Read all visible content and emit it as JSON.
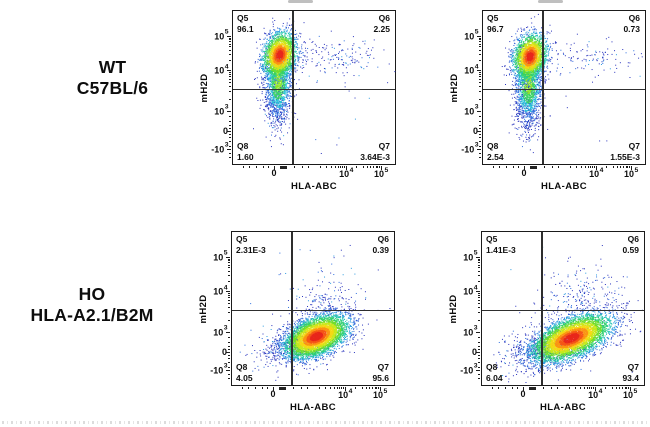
{
  "figure": {
    "background": "#ffffff",
    "text_color": "#0d0d0d"
  },
  "rows": [
    {
      "line1": "WT",
      "line2": "C57BL/6"
    },
    {
      "line1": "HO",
      "line2": "HLA-A2.1/B2M"
    }
  ],
  "axes": {
    "x": {
      "label": "HLA-ABC",
      "scale": "biexponential",
      "ticks": [
        {
          "base": "0",
          "exp": "",
          "pos": 0.25
        },
        {
          "base": "10",
          "exp": "4",
          "pos": 0.689
        },
        {
          "base": "10",
          "exp": "5",
          "pos": 0.902
        }
      ],
      "minor": [
        0.753,
        0.791,
        0.818,
        0.838,
        0.855,
        0.869,
        0.881,
        0.892,
        0.529,
        0.569,
        0.598,
        0.62,
        0.638,
        0.653,
        0.666,
        0.678,
        0.46,
        0.418,
        0.372,
        0.325,
        0.285,
        0.215,
        0.18,
        0.14,
        0.1,
        0.06
      ]
    },
    "y": {
      "label": "mH2D",
      "scale": "biexponential",
      "ticks": [
        {
          "base": "10",
          "exp": "5",
          "pos": 0.839
        },
        {
          "base": "10",
          "exp": "4",
          "pos": 0.619
        },
        {
          "base": "10",
          "exp": "3",
          "pos": 0.355
        },
        {
          "base": "0",
          "exp": "",
          "pos": 0.226
        },
        {
          "base": "-10",
          "exp": "3",
          "pos": 0.11
        }
      ],
      "minor": [
        0.685,
        0.724,
        0.751,
        0.772,
        0.79,
        0.804,
        0.817,
        0.828,
        0.434,
        0.481,
        0.514,
        0.54,
        0.561,
        0.578,
        0.594,
        0.607,
        0.322,
        0.292,
        0.266,
        0.246,
        0.206,
        0.186,
        0.16,
        0.132,
        0.085,
        0.06
      ]
    }
  },
  "gates": {
    "v": 0.362,
    "h": 0.503
  },
  "render": {
    "palette_hot": [
      [
        0.4,
        "#e8281c"
      ],
      [
        0.62,
        "#f55718"
      ],
      [
        0.85,
        "#fb9614"
      ],
      [
        1.08,
        "#f4d916"
      ],
      [
        1.32,
        "#c7e81c"
      ],
      [
        1.58,
        "#6fdc2e"
      ],
      [
        1.85,
        "#30cf6e"
      ],
      [
        2.1,
        "#24c4b2"
      ],
      [
        2.4,
        "#2b9ae0"
      ],
      [
        2.75,
        "#2f5fd6"
      ],
      [
        99,
        "#2a34bd"
      ]
    ],
    "palette_mid": [
      [
        0.55,
        "#8fe32a"
      ],
      [
        1.05,
        "#3bd465"
      ],
      [
        1.55,
        "#27c0d8"
      ],
      [
        2.05,
        "#2e6fe0"
      ],
      [
        99,
        "#2a34bd"
      ]
    ],
    "palette_cold": {
      "colors": [
        "#2a34bd",
        "#2e6fe0",
        "#2b9ae0"
      ],
      "weights": [
        0.7,
        0.2,
        0.1
      ]
    }
  },
  "chart_data": [
    {
      "type": "scatter-density",
      "row": "WT C57BL/6",
      "xlabel": "HLA-ABC",
      "ylabel": "mH2D",
      "seed": 101,
      "quadrants": {
        "q5": {
          "name": "Q5",
          "value": "96.1"
        },
        "q6": {
          "name": "Q6",
          "value": "2.25"
        },
        "q8": {
          "name": "Q8",
          "value": "1.60"
        },
        "q7": {
          "name": "Q7",
          "value": "3.64E-3"
        }
      },
      "populations": [
        {
          "type": "uniform",
          "n": 20,
          "x0": 0.1,
          "x1": 0.95,
          "y0": 0.08,
          "y1": 0.9,
          "style": "cold"
        },
        {
          "n": 165,
          "cx": 0.58,
          "cy": 0.71,
          "sx": 0.16,
          "sy": 0.055,
          "rho": 0,
          "style": "cold"
        },
        {
          "n": 30,
          "cx": 0.75,
          "cy": 0.66,
          "sx": 0.13,
          "sy": 0.1,
          "rho": 0,
          "style": "cold"
        },
        {
          "n": 260,
          "cx": 0.268,
          "cy": 0.4,
          "sx": 0.035,
          "sy": 0.095,
          "rho": 0,
          "style": "cold"
        },
        {
          "n": 1500,
          "cx": 0.276,
          "cy": 0.55,
          "sx": 0.04,
          "sy": 0.115,
          "rho": 0,
          "style": "mid"
        },
        {
          "n": 2400,
          "cx": 0.285,
          "cy": 0.715,
          "sx": 0.05,
          "sy": 0.072,
          "rho": 0.18,
          "style": "hot"
        }
      ]
    },
    {
      "type": "scatter-density",
      "row": "WT C57BL/6",
      "xlabel": "HLA-ABC",
      "ylabel": "mH2D",
      "seed": 202,
      "quadrants": {
        "q5": {
          "name": "Q5",
          "value": "96.7"
        },
        "q6": {
          "name": "Q6",
          "value": "0.73"
        },
        "q8": {
          "name": "Q8",
          "value": "2.54"
        },
        "q7": {
          "name": "Q7",
          "value": "1.55E-3"
        }
      },
      "populations": [
        {
          "type": "uniform",
          "n": 16,
          "x0": 0.1,
          "x1": 0.95,
          "y0": 0.08,
          "y1": 0.9,
          "style": "cold"
        },
        {
          "n": 95,
          "cx": 0.6,
          "cy": 0.7,
          "sx": 0.17,
          "sy": 0.05,
          "rho": 0,
          "style": "cold"
        },
        {
          "n": 25,
          "cx": 0.78,
          "cy": 0.66,
          "sx": 0.12,
          "sy": 0.09,
          "rho": 0,
          "style": "cold"
        },
        {
          "n": 320,
          "cx": 0.27,
          "cy": 0.38,
          "sx": 0.036,
          "sy": 0.1,
          "rho": 0,
          "style": "cold"
        },
        {
          "n": 1600,
          "cx": 0.278,
          "cy": 0.53,
          "sx": 0.04,
          "sy": 0.12,
          "rho": 0,
          "style": "mid"
        },
        {
          "n": 2400,
          "cx": 0.287,
          "cy": 0.705,
          "sx": 0.05,
          "sy": 0.072,
          "rho": 0.18,
          "style": "hot"
        }
      ]
    },
    {
      "type": "scatter-density",
      "row": "HO HLA-A2.1/B2M",
      "xlabel": "HLA-ABC",
      "ylabel": "mH2D",
      "seed": 303,
      "quadrants": {
        "q5": {
          "name": "Q5",
          "value": "2.31E-3"
        },
        "q6": {
          "name": "Q6",
          "value": "0.39"
        },
        "q8": {
          "name": "Q8",
          "value": "4.05"
        },
        "q7": {
          "name": "Q7",
          "value": "95.6"
        }
      },
      "populations": [
        {
          "type": "uniform",
          "n": 18,
          "x0": 0.1,
          "x1": 0.95,
          "y0": 0.08,
          "y1": 0.92,
          "style": "cold"
        },
        {
          "n": 120,
          "cx": 0.56,
          "cy": 0.555,
          "sx": 0.11,
          "sy": 0.065,
          "rho": 0,
          "style": "cold"
        },
        {
          "n": 45,
          "cx": 0.6,
          "cy": 0.68,
          "sx": 0.12,
          "sy": 0.09,
          "rho": 0,
          "style": "cold"
        },
        {
          "n": 520,
          "cx": 0.4,
          "cy": 0.28,
          "sx": 0.115,
          "sy": 0.07,
          "rho": 0.35,
          "style": "cold"
        },
        {
          "n": 5200,
          "cx": 0.515,
          "cy": 0.325,
          "sx": 0.095,
          "sy": 0.068,
          "rho": 0.45,
          "style": "hot"
        }
      ]
    },
    {
      "type": "scatter-density",
      "row": "HO HLA-A2.1/B2M",
      "xlabel": "HLA-ABC",
      "ylabel": "mH2D",
      "seed": 404,
      "quadrants": {
        "q5": {
          "name": "Q5",
          "value": "1.41E-3"
        },
        "q6": {
          "name": "Q6",
          "value": "0.59"
        },
        "q8": {
          "name": "Q8",
          "value": "6.04"
        },
        "q7": {
          "name": "Q7",
          "value": "93.4"
        }
      },
      "populations": [
        {
          "type": "uniform",
          "n": 20,
          "x0": 0.08,
          "x1": 0.95,
          "y0": 0.08,
          "y1": 0.92,
          "style": "cold"
        },
        {
          "n": 150,
          "cx": 0.6,
          "cy": 0.555,
          "sx": 0.13,
          "sy": 0.065,
          "rho": 0,
          "style": "cold"
        },
        {
          "n": 60,
          "cx": 0.63,
          "cy": 0.68,
          "sx": 0.13,
          "sy": 0.1,
          "rho": 0,
          "style": "cold"
        },
        {
          "n": 700,
          "cx": 0.4,
          "cy": 0.25,
          "sx": 0.135,
          "sy": 0.075,
          "rho": 0.4,
          "style": "cold"
        },
        {
          "n": 5600,
          "cx": 0.545,
          "cy": 0.315,
          "sx": 0.118,
          "sy": 0.075,
          "rho": 0.55,
          "style": "hot"
        }
      ]
    }
  ]
}
